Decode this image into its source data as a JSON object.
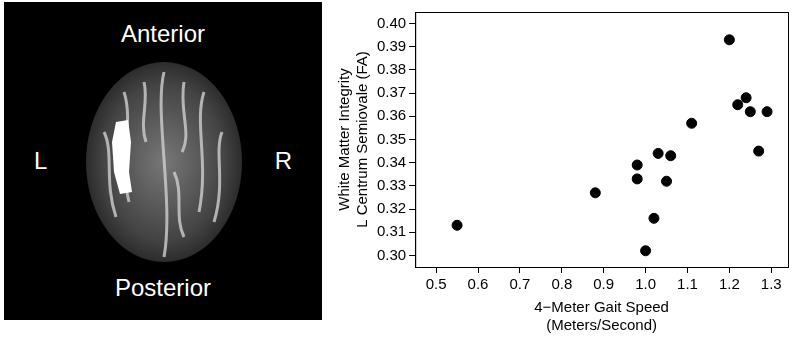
{
  "image_labels": {
    "top": "Anterior",
    "bottom": "Posterior",
    "left": "L",
    "right": "R"
  },
  "chart_data": {
    "type": "scatter",
    "xlabel": [
      "4−Meter Gait Speed",
      "(Meters/Second)"
    ],
    "ylabel": [
      "White Matter Integrity",
      "L Centrum Semiovale (FA)"
    ],
    "x": [
      0.55,
      0.88,
      0.98,
      0.98,
      1.0,
      1.02,
      1.03,
      1.05,
      1.06,
      1.11,
      1.2,
      1.22,
      1.24,
      1.25,
      1.27,
      1.29
    ],
    "values": [
      0.313,
      0.327,
      0.339,
      0.333,
      0.302,
      0.316,
      0.344,
      0.332,
      0.343,
      0.357,
      0.393,
      0.365,
      0.368,
      0.362,
      0.345,
      0.362
    ],
    "color": "#000000",
    "marker": "circle",
    "xlim": [
      0.45,
      1.34
    ],
    "xticks": [
      0.5,
      0.6,
      0.7,
      0.8,
      0.9,
      {
        "value": 1,
        "label": "1.0"
      },
      1.1,
      1.2,
      1.3
    ],
    "ylim": [
      0.295,
      0.405
    ],
    "yticks": [
      {
        "value": 0.3,
        "label": "0.30"
      },
      0.31,
      0.32,
      0.33,
      0.34,
      0.35,
      0.36,
      0.37,
      0.38,
      0.39,
      {
        "value": 0.4,
        "label": "0.40"
      }
    ],
    "grid": false
  }
}
